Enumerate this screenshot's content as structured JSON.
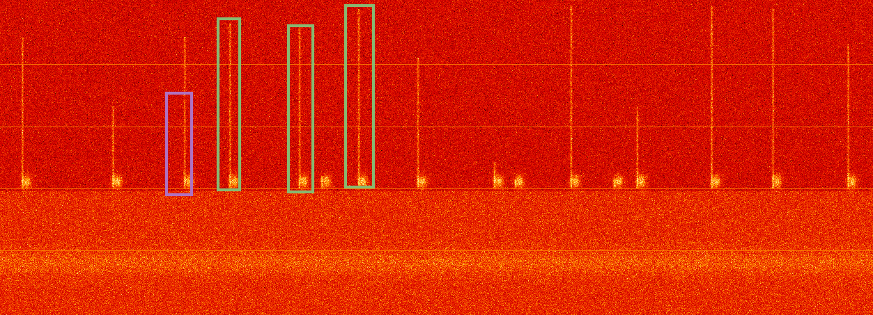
{
  "chart_data": {
    "type": "spectrogram",
    "xlim": [
      0,
      1253
    ],
    "ylim": [
      0,
      453
    ],
    "tick_labels": false,
    "calls": [
      {
        "time": 32,
        "top": 400
      },
      {
        "time": 162,
        "top": 300
      },
      {
        "time": 265,
        "top": 400
      },
      {
        "time": 330,
        "top": 420
      },
      {
        "time": 430,
        "top": 415
      },
      {
        "time": 462,
        "top": 200
      },
      {
        "time": 515,
        "top": 440
      },
      {
        "time": 600,
        "top": 370
      },
      {
        "time": 710,
        "top": 220
      },
      {
        "time": 740,
        "top": 195
      },
      {
        "time": 820,
        "top": 445
      },
      {
        "time": 882,
        "top": 195
      },
      {
        "time": 915,
        "top": 300
      },
      {
        "time": 1022,
        "top": 445
      },
      {
        "time": 1110,
        "top": 440
      },
      {
        "time": 1218,
        "top": 390
      }
    ],
    "boxes": [
      {
        "t0": 239,
        "t1": 275,
        "f0": 173,
        "f1": 319,
        "color": "#b070c0"
      },
      {
        "t0": 313,
        "t1": 344,
        "f0": 180,
        "f1": 426,
        "color": "#88b870"
      },
      {
        "t0": 414,
        "t1": 449,
        "f0": 177,
        "f1": 416,
        "color": "#88b870"
      },
      {
        "t0": 496,
        "t1": 536,
        "f0": 184,
        "f1": 445,
        "color": "#88b870"
      }
    ]
  }
}
